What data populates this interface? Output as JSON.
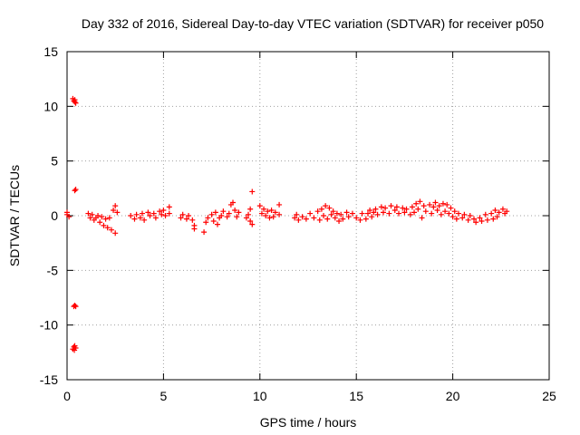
{
  "chart_data": {
    "type": "scatter",
    "title": "Day 332 of 2016, Sidereal Day-to-day VTEC variation (SDTVAR) for receiver p050",
    "xlabel": "GPS time / hours",
    "ylabel": "SDTVAR / TECUs",
    "xlim": [
      0,
      25
    ],
    "ylim": [
      -15,
      15
    ],
    "xticks": [
      0,
      5,
      10,
      15,
      20,
      25
    ],
    "yticks": [
      -15,
      -10,
      -5,
      0,
      5,
      10,
      15
    ],
    "grid": true,
    "marker": "+",
    "series_color": "#ff0000",
    "series": [
      {
        "name": "SDTVAR",
        "points": [
          [
            0.0,
            0.1
          ],
          [
            0.0,
            0.3
          ],
          [
            0.1,
            -0.1
          ],
          [
            0.3,
            10.7
          ],
          [
            0.35,
            10.5
          ],
          [
            0.4,
            10.4
          ],
          [
            0.45,
            10.3
          ],
          [
            0.4,
            10.6
          ],
          [
            0.4,
            2.3
          ],
          [
            0.45,
            2.4
          ],
          [
            0.35,
            -8.3
          ],
          [
            0.4,
            -8.2
          ],
          [
            0.45,
            -8.3
          ],
          [
            0.3,
            -12.2
          ],
          [
            0.35,
            -12.0
          ],
          [
            0.4,
            -11.9
          ],
          [
            0.45,
            -12.1
          ],
          [
            0.38,
            -12.3
          ],
          [
            1.1,
            0.2
          ],
          [
            1.2,
            -0.2
          ],
          [
            1.3,
            0.1
          ],
          [
            1.4,
            -0.4
          ],
          [
            1.5,
            -0.2
          ],
          [
            1.6,
            0.0
          ],
          [
            1.7,
            -0.6
          ],
          [
            1.8,
            -0.1
          ],
          [
            1.9,
            -0.9
          ],
          [
            2.0,
            -0.3
          ],
          [
            2.1,
            -1.1
          ],
          [
            2.2,
            -0.2
          ],
          [
            2.3,
            -1.3
          ],
          [
            2.4,
            0.5
          ],
          [
            2.5,
            -1.6
          ],
          [
            2.5,
            0.9
          ],
          [
            2.6,
            0.3
          ],
          [
            3.3,
            0.0
          ],
          [
            3.5,
            -0.3
          ],
          [
            3.6,
            0.1
          ],
          [
            3.8,
            -0.2
          ],
          [
            3.9,
            0.2
          ],
          [
            4.0,
            -0.4
          ],
          [
            4.2,
            0.3
          ],
          [
            4.3,
            0.0
          ],
          [
            4.5,
            0.2
          ],
          [
            4.6,
            -0.2
          ],
          [
            4.8,
            0.4
          ],
          [
            4.9,
            0.1
          ],
          [
            5.0,
            0.5
          ],
          [
            5.1,
            0.0
          ],
          [
            5.3,
            0.8
          ],
          [
            5.3,
            0.2
          ],
          [
            5.9,
            -0.2
          ],
          [
            6.0,
            0.1
          ],
          [
            6.2,
            -0.3
          ],
          [
            6.3,
            0.0
          ],
          [
            6.5,
            -0.4
          ],
          [
            6.6,
            -0.9
          ],
          [
            6.6,
            -1.2
          ],
          [
            7.1,
            -1.5
          ],
          [
            7.2,
            -0.6
          ],
          [
            7.3,
            -0.2
          ],
          [
            7.5,
            0.1
          ],
          [
            7.6,
            -0.5
          ],
          [
            7.7,
            0.3
          ],
          [
            7.8,
            -0.8
          ],
          [
            7.9,
            -0.2
          ],
          [
            8.0,
            0.0
          ],
          [
            8.1,
            0.4
          ],
          [
            8.3,
            -0.1
          ],
          [
            8.4,
            0.2
          ],
          [
            8.5,
            1.0
          ],
          [
            8.6,
            1.2
          ],
          [
            8.7,
            0.5
          ],
          [
            8.8,
            -0.1
          ],
          [
            8.9,
            0.3
          ],
          [
            9.3,
            -0.2
          ],
          [
            9.4,
            0.1
          ],
          [
            9.5,
            -0.5
          ],
          [
            9.5,
            0.6
          ],
          [
            9.6,
            2.2
          ],
          [
            9.6,
            -0.8
          ],
          [
            10.0,
            0.9
          ],
          [
            10.1,
            0.2
          ],
          [
            10.2,
            0.6
          ],
          [
            10.3,
            0.0
          ],
          [
            10.4,
            0.4
          ],
          [
            10.5,
            -0.2
          ],
          [
            10.6,
            0.5
          ],
          [
            10.7,
            -0.1
          ],
          [
            10.8,
            0.3
          ],
          [
            11.0,
            1.0
          ],
          [
            11.0,
            0.1
          ],
          [
            11.8,
            -0.2
          ],
          [
            11.9,
            0.1
          ],
          [
            12.0,
            -0.4
          ],
          [
            12.2,
            -0.1
          ],
          [
            12.4,
            -0.3
          ],
          [
            12.6,
            0.2
          ],
          [
            12.8,
            -0.2
          ],
          [
            13.0,
            0.4
          ],
          [
            13.1,
            -0.4
          ],
          [
            13.2,
            0.6
          ],
          [
            13.3,
            0.0
          ],
          [
            13.4,
            0.9
          ],
          [
            13.5,
            -0.3
          ],
          [
            13.6,
            0.7
          ],
          [
            13.7,
            0.1
          ],
          [
            13.8,
            0.4
          ],
          [
            13.9,
            -0.2
          ],
          [
            14.0,
            0.2
          ],
          [
            14.1,
            -0.5
          ],
          [
            14.2,
            0.1
          ],
          [
            14.3,
            -0.3
          ],
          [
            14.5,
            0.3
          ],
          [
            14.6,
            -0.1
          ],
          [
            14.8,
            0.2
          ],
          [
            15.0,
            -0.2
          ],
          [
            15.2,
            -0.4
          ],
          [
            15.3,
            0.2
          ],
          [
            15.5,
            -0.3
          ],
          [
            15.6,
            0.2
          ],
          [
            15.7,
            0.5
          ],
          [
            15.8,
            -0.1
          ],
          [
            15.9,
            0.3
          ],
          [
            16.0,
            0.6
          ],
          [
            16.1,
            0.1
          ],
          [
            16.3,
            0.8
          ],
          [
            16.4,
            0.3
          ],
          [
            16.5,
            0.7
          ],
          [
            16.7,
            0.2
          ],
          [
            16.8,
            0.9
          ],
          [
            17.0,
            0.5
          ],
          [
            17.1,
            0.8
          ],
          [
            17.2,
            0.2
          ],
          [
            17.4,
            0.7
          ],
          [
            17.5,
            0.3
          ],
          [
            17.6,
            0.6
          ],
          [
            17.8,
            0.1
          ],
          [
            17.9,
            0.8
          ],
          [
            18.0,
            0.3
          ],
          [
            18.1,
            1.1
          ],
          [
            18.2,
            0.6
          ],
          [
            18.3,
            1.3
          ],
          [
            18.4,
            -0.2
          ],
          [
            18.5,
            0.9
          ],
          [
            18.6,
            0.4
          ],
          [
            18.8,
            1.0
          ],
          [
            18.9,
            0.2
          ],
          [
            19.0,
            0.8
          ],
          [
            19.1,
            1.2
          ],
          [
            19.2,
            0.5
          ],
          [
            19.3,
            0.9
          ],
          [
            19.4,
            0.1
          ],
          [
            19.5,
            1.1
          ],
          [
            19.6,
            0.4
          ],
          [
            19.7,
            1.0
          ],
          [
            19.8,
            0.2
          ],
          [
            19.9,
            0.7
          ],
          [
            20.0,
            -0.1
          ],
          [
            20.1,
            0.4
          ],
          [
            20.2,
            -0.3
          ],
          [
            20.3,
            0.2
          ],
          [
            20.5,
            -0.2
          ],
          [
            20.6,
            0.1
          ],
          [
            20.8,
            -0.4
          ],
          [
            20.9,
            0.0
          ],
          [
            21.1,
            -0.3
          ],
          [
            21.2,
            -0.6
          ],
          [
            21.4,
            -0.2
          ],
          [
            21.5,
            -0.5
          ],
          [
            21.7,
            0.1
          ],
          [
            21.8,
            -0.4
          ],
          [
            22.0,
            0.2
          ],
          [
            22.1,
            -0.3
          ],
          [
            22.2,
            0.5
          ],
          [
            22.3,
            -0.1
          ],
          [
            22.4,
            0.3
          ],
          [
            22.6,
            0.6
          ],
          [
            22.7,
            0.2
          ],
          [
            22.8,
            0.4
          ]
        ]
      }
    ]
  }
}
